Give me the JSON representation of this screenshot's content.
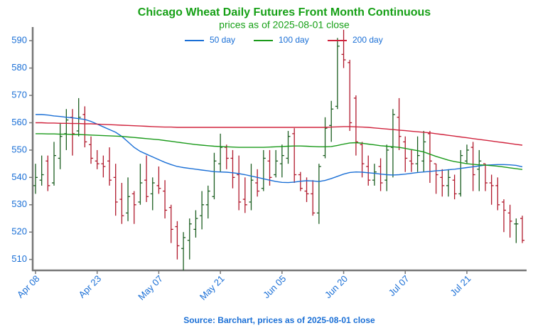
{
  "chart_data": {
    "type": "ohlc",
    "title": "Chicago Wheat Daily Futures Front Month Continuous",
    "subtitle": "prices as of 2025-08-01 close",
    "source": "Source: Barchart, prices as of 2025-08-01 close",
    "categories": [
      "Apr 08",
      null,
      null,
      null,
      null,
      null,
      null,
      null,
      null,
      null,
      "Apr 23",
      null,
      null,
      null,
      null,
      null,
      null,
      null,
      null,
      null,
      "May 07",
      null,
      null,
      null,
      null,
      null,
      null,
      null,
      null,
      null,
      "May 21",
      null,
      null,
      null,
      null,
      null,
      null,
      null,
      null,
      null,
      "Jun 05",
      null,
      null,
      null,
      null,
      null,
      null,
      null,
      null,
      null,
      "Jun 20",
      null,
      null,
      null,
      null,
      null,
      null,
      null,
      null,
      null,
      "Jul 07",
      null,
      null,
      null,
      null,
      null,
      null,
      null,
      null,
      null,
      "Jul 21",
      null,
      null,
      null,
      null,
      null,
      null,
      null,
      null,
      null
    ],
    "open": [
      537,
      539,
      546,
      538,
      547,
      556,
      562,
      557,
      563,
      552,
      546,
      545,
      546,
      540,
      532,
      527,
      534,
      531,
      539,
      534,
      537,
      535,
      529,
      522,
      514,
      517,
      521,
      526,
      530,
      533,
      545,
      551,
      547,
      541,
      532,
      531,
      538,
      536,
      546,
      541,
      545,
      547,
      556,
      541,
      535,
      534,
      527,
      548,
      559,
      566,
      585,
      582,
      569,
      552,
      544,
      539,
      544,
      539,
      551,
      562,
      553,
      546,
      545,
      546,
      556,
      545,
      540,
      537,
      539,
      534,
      546,
      551,
      543,
      545,
      538,
      537,
      531,
      527,
      523,
      525
    ],
    "high": [
      545,
      548,
      548,
      553,
      560,
      565,
      565,
      569,
      566,
      555,
      550,
      548,
      551,
      545,
      538,
      540,
      535,
      545,
      548,
      540,
      544,
      539,
      530,
      524,
      520,
      525,
      528,
      535,
      537,
      549,
      556,
      552,
      550,
      548,
      540,
      545,
      543,
      550,
      550,
      550,
      552,
      557,
      558,
      542,
      540,
      539,
      545,
      562,
      568,
      591,
      594,
      583,
      570,
      553,
      548,
      545,
      547,
      552,
      565,
      569,
      555,
      550,
      555,
      557,
      557,
      545,
      543,
      543,
      541,
      550,
      552,
      553,
      550,
      545,
      541,
      540,
      532,
      530,
      525,
      526
    ],
    "low": [
      534,
      537,
      535,
      537,
      543,
      550,
      548,
      555,
      551,
      545,
      543,
      540,
      537,
      526,
      523,
      524,
      523,
      530,
      531,
      528,
      534,
      525,
      516,
      510,
      506,
      510,
      518,
      521,
      525,
      532,
      542,
      543,
      536,
      528,
      527,
      528,
      533,
      535,
      537,
      540,
      540,
      545,
      538,
      535,
      531,
      526,
      523,
      547,
      553,
      565,
      580,
      557,
      548,
      540,
      537,
      537,
      535,
      535,
      540,
      550,
      542,
      542,
      542,
      542,
      538,
      534,
      533,
      533,
      532,
      533,
      545,
      535,
      535,
      535,
      530,
      528,
      520,
      518,
      516,
      516
    ],
    "close": [
      540,
      541,
      537,
      548,
      555,
      561,
      556,
      562,
      553,
      547,
      545,
      544,
      539,
      531,
      526,
      533,
      530,
      538,
      533,
      538,
      536,
      528,
      521,
      515,
      518,
      523,
      525,
      530,
      535,
      546,
      551,
      547,
      540,
      531,
      530,
      539,
      535,
      547,
      540,
      546,
      548,
      555,
      541,
      536,
      534,
      527,
      544,
      558,
      565,
      588,
      583,
      560,
      553,
      545,
      539,
      542,
      538,
      550,
      563,
      555,
      547,
      545,
      548,
      553,
      546,
      541,
      537,
      540,
      534,
      548,
      550,
      541,
      546,
      538,
      537,
      530,
      528,
      524,
      523,
      517
    ],
    "up_color": "#1b5e20",
    "down_color": "#b0182b",
    "series": [
      {
        "name": "50 day",
        "color": "#1a6fd6",
        "values": [
          563,
          563,
          562.8,
          562.5,
          562.3,
          562,
          561.8,
          561.5,
          561.2,
          560.5,
          559.5,
          558.5,
          557.5,
          556.5,
          555,
          553,
          551,
          549.5,
          548.5,
          547.5,
          546.5,
          545.5,
          544.7,
          544,
          543.6,
          543.3,
          543,
          542.7,
          542.4,
          542.1,
          542,
          541.9,
          541.7,
          541.4,
          541,
          540.5,
          540,
          539.5,
          539,
          538.5,
          538.2,
          538.1,
          538.3,
          538.6,
          538.8,
          538.7,
          538.5,
          538.9,
          539.6,
          540.4,
          541.2,
          541.8,
          542,
          541.9,
          541.7,
          541.5,
          541.2,
          541,
          540.9,
          541,
          541.2,
          541.5,
          541.8,
          542,
          542.2,
          542.4,
          542.6,
          542.8,
          543,
          543.3,
          543.6,
          543.9,
          544.2,
          544.5,
          544.6,
          544.7,
          544.7,
          544.6,
          544.4,
          543.9
        ]
      },
      {
        "name": "100 day",
        "color": "#1a9a1a",
        "values": [
          556,
          556,
          555.9,
          555.9,
          555.8,
          555.8,
          555.7,
          555.7,
          555.6,
          555.5,
          555.4,
          555.3,
          555.2,
          555.1,
          555,
          554.8,
          554.6,
          554.4,
          554.2,
          554,
          553.8,
          553.5,
          553.2,
          552.9,
          552.6,
          552.3,
          552,
          551.8,
          551.6,
          551.4,
          551.3,
          551.2,
          551.1,
          551,
          551,
          551,
          551,
          551,
          551.1,
          551.2,
          551.3,
          551.4,
          551.5,
          551.5,
          551.4,
          551.3,
          551.2,
          551.2,
          551.3,
          551.7,
          552.2,
          552.6,
          552.7,
          552.5,
          552.2,
          551.9,
          551.6,
          551.4,
          551.2,
          551,
          550.6,
          550.2,
          549.8,
          549.3,
          548.5,
          547.7,
          547,
          546.3,
          545.8,
          545.4,
          545,
          544.8,
          544.6,
          544.5,
          544.3,
          544.1,
          543.8,
          543.5,
          543.2,
          542.9
        ]
      },
      {
        "name": "200 day",
        "color": "#d0223c",
        "values": [
          560,
          560,
          559.9,
          559.9,
          559.8,
          559.8,
          559.7,
          559.7,
          559.6,
          559.6,
          559.5,
          559.4,
          559.3,
          559.2,
          559.1,
          559,
          558.9,
          558.8,
          558.7,
          558.6,
          558.5,
          558.4,
          558.4,
          558.3,
          558.3,
          558.3,
          558.3,
          558.3,
          558.3,
          558.3,
          558.3,
          558.3,
          558.3,
          558.3,
          558.3,
          558.3,
          558.3,
          558.3,
          558.3,
          558.3,
          558.3,
          558.3,
          558.3,
          558.3,
          558.3,
          558.3,
          558.3,
          558.3,
          558.4,
          558.5,
          558.6,
          558.6,
          558.5,
          558.4,
          558.3,
          558.1,
          557.9,
          557.7,
          557.5,
          557.3,
          557.1,
          556.9,
          556.7,
          556.5,
          556.3,
          556,
          555.7,
          555.4,
          555.1,
          554.8,
          554.5,
          554.2,
          553.9,
          553.6,
          553.3,
          553,
          552.7,
          552.4,
          552.1,
          551.8
        ]
      }
    ],
    "ylim": [
      506,
      595
    ],
    "yticks": [
      510,
      520,
      530,
      540,
      550,
      560,
      570,
      580,
      590
    ],
    "legend": "top",
    "grid": false
  }
}
